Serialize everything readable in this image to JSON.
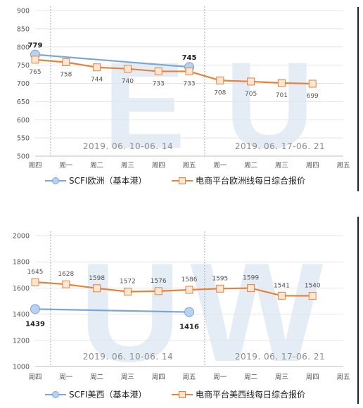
{
  "chart_data": [
    {
      "type": "line",
      "watermark": "EU",
      "categories": [
        "周四",
        "周一",
        "周二",
        "周三",
        "周四",
        "周五",
        "周一",
        "周二",
        "周三",
        "周四",
        "周五"
      ],
      "ylim": [
        500,
        900
      ],
      "yticks": [
        "500",
        "550",
        "600",
        "650",
        "700",
        "750",
        "800",
        "850",
        "900"
      ],
      "grid": true,
      "periods": [
        "2019. 06. 10-06. 14",
        "2019. 06. 17-06. 21"
      ],
      "series": [
        {
          "name": "SCFI欧洲（基本港）",
          "color": "#7ba7d8",
          "points": [
            [
              0,
              779
            ],
            [
              5,
              745
            ]
          ],
          "labels": [
            "779",
            "745"
          ]
        },
        {
          "name": "电商平台欧洲线每日综合报价",
          "color": "#e8813a",
          "points": [
            [
              0,
              765
            ],
            [
              1,
              758
            ],
            [
              2,
              744
            ],
            [
              3,
              740
            ],
            [
              4,
              733
            ],
            [
              5,
              733
            ],
            [
              6,
              708
            ],
            [
              7,
              705
            ],
            [
              8,
              701
            ],
            [
              9,
              699
            ]
          ],
          "labels": [
            "765",
            "758",
            "744",
            "740",
            "733",
            "733",
            "708",
            "705",
            "701",
            "699"
          ]
        }
      ]
    },
    {
      "type": "line",
      "watermark": "UW",
      "categories": [
        "周四",
        "周一",
        "周二",
        "周三",
        "周四",
        "周五",
        "周一",
        "周二",
        "周三",
        "周四",
        "周五"
      ],
      "ylim": [
        1000,
        2000
      ],
      "yticks": [
        "1000",
        "1200",
        "1400",
        "1600",
        "1800",
        "2000"
      ],
      "grid": true,
      "periods": [
        "2019. 06. 10-06. 14",
        "2019. 06. 17-06. 21"
      ],
      "series": [
        {
          "name": "SCFI美西（基本港）",
          "color": "#7ba7d8",
          "points": [
            [
              0,
              1439
            ],
            [
              5,
              1416
            ]
          ],
          "labels": [
            "1439",
            "1416"
          ]
        },
        {
          "name": "电商平台美西线每日综合报价",
          "color": "#e8813a",
          "points": [
            [
              0,
              1645
            ],
            [
              1,
              1628
            ],
            [
              2,
              1598
            ],
            [
              3,
              1572
            ],
            [
              4,
              1576
            ],
            [
              5,
              1586
            ],
            [
              6,
              1595
            ],
            [
              7,
              1599
            ],
            [
              8,
              1541
            ],
            [
              9,
              1540
            ]
          ],
          "labels": [
            "1645",
            "1628",
            "1598",
            "1572",
            "1576",
            "1586",
            "1595",
            "1599",
            "1541",
            "1540"
          ]
        }
      ]
    }
  ]
}
